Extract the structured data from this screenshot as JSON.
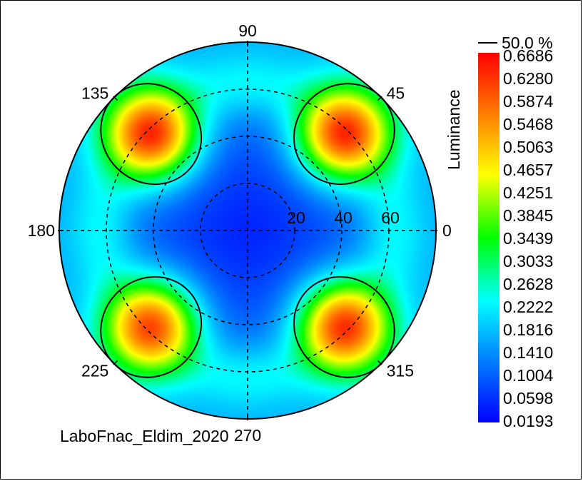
{
  "chart_data": {
    "type": "heatmap",
    "subtype": "polar-conoscope",
    "caption": "LaboFnac_Eldim_2020",
    "angle_labels": [
      {
        "angle": 0,
        "text": "0"
      },
      {
        "angle": 45,
        "text": "45"
      },
      {
        "angle": 90,
        "text": "90"
      },
      {
        "angle": 135,
        "text": "135"
      },
      {
        "angle": 180,
        "text": "180"
      },
      {
        "angle": 225,
        "text": "225"
      },
      {
        "angle": 270,
        "text": "270"
      },
      {
        "angle": 315,
        "text": "315"
      }
    ],
    "radial_ticks": [
      20,
      40,
      60
    ],
    "radial_max": 80,
    "colorbar": {
      "title": "Luminance",
      "contour_label": "50.0 %",
      "ticks": [
        "0.6686",
        "0.6280",
        "0.5874",
        "0.5468",
        "0.5063",
        "0.4657",
        "0.4251",
        "0.3845",
        "0.3439",
        "0.3033",
        "0.2628",
        "0.2222",
        "0.1816",
        "0.1410",
        "0.1004",
        "0.0598",
        "0.0193"
      ],
      "min": 0.0193,
      "max": 0.6686,
      "colors": [
        "#0000ff",
        "#0080ff",
        "#00ffff",
        "#00ff00",
        "#ffff00",
        "#ff8000",
        "#ff0000"
      ]
    },
    "lobes": [
      {
        "azimuth": 45,
        "polar": 58,
        "peak": 0.6686
      },
      {
        "azimuth": 135,
        "polar": 58,
        "peak": 0.6686
      },
      {
        "azimuth": 225,
        "polar": 58,
        "peak": 0.64
      },
      {
        "azimuth": 315,
        "polar": 58,
        "peak": 0.66
      }
    ],
    "contour_level_fraction": 0.5,
    "grid": true
  }
}
